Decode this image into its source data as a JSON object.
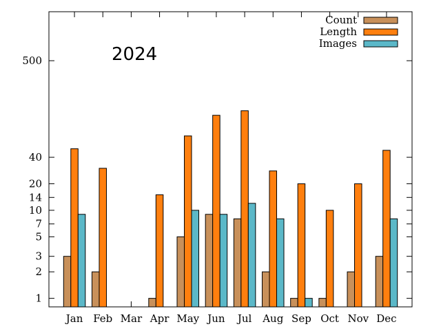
{
  "chart_data": {
    "type": "bar",
    "title": "",
    "xlabel": "",
    "ylabel": "",
    "annotation": "2024",
    "y_scale": "log",
    "ylim": [
      0.8,
      1800
    ],
    "y_ticks": [
      1,
      2,
      3,
      5,
      7,
      10,
      14,
      20,
      40,
      500
    ],
    "legend_position": "top-right",
    "grid": false,
    "categories": [
      "Jan",
      "Feb",
      "Mar",
      "Apr",
      "May",
      "Jun",
      "Jul",
      "Aug",
      "Sep",
      "Oct",
      "Nov",
      "Dec"
    ],
    "series": [
      {
        "name": "Count",
        "color": "#c8905a",
        "values": [
          3,
          2,
          null,
          1,
          5,
          9,
          8,
          2,
          1,
          1,
          2,
          3
        ]
      },
      {
        "name": "Length",
        "color": "#ff7f0e",
        "values": [
          50,
          30,
          null,
          15,
          70,
          120,
          135,
          28,
          20,
          10,
          20,
          48
        ]
      },
      {
        "name": "Images",
        "color": "#5bb8c8",
        "values": [
          9,
          null,
          null,
          null,
          10,
          9,
          12,
          8,
          1,
          null,
          null,
          8
        ]
      }
    ]
  }
}
